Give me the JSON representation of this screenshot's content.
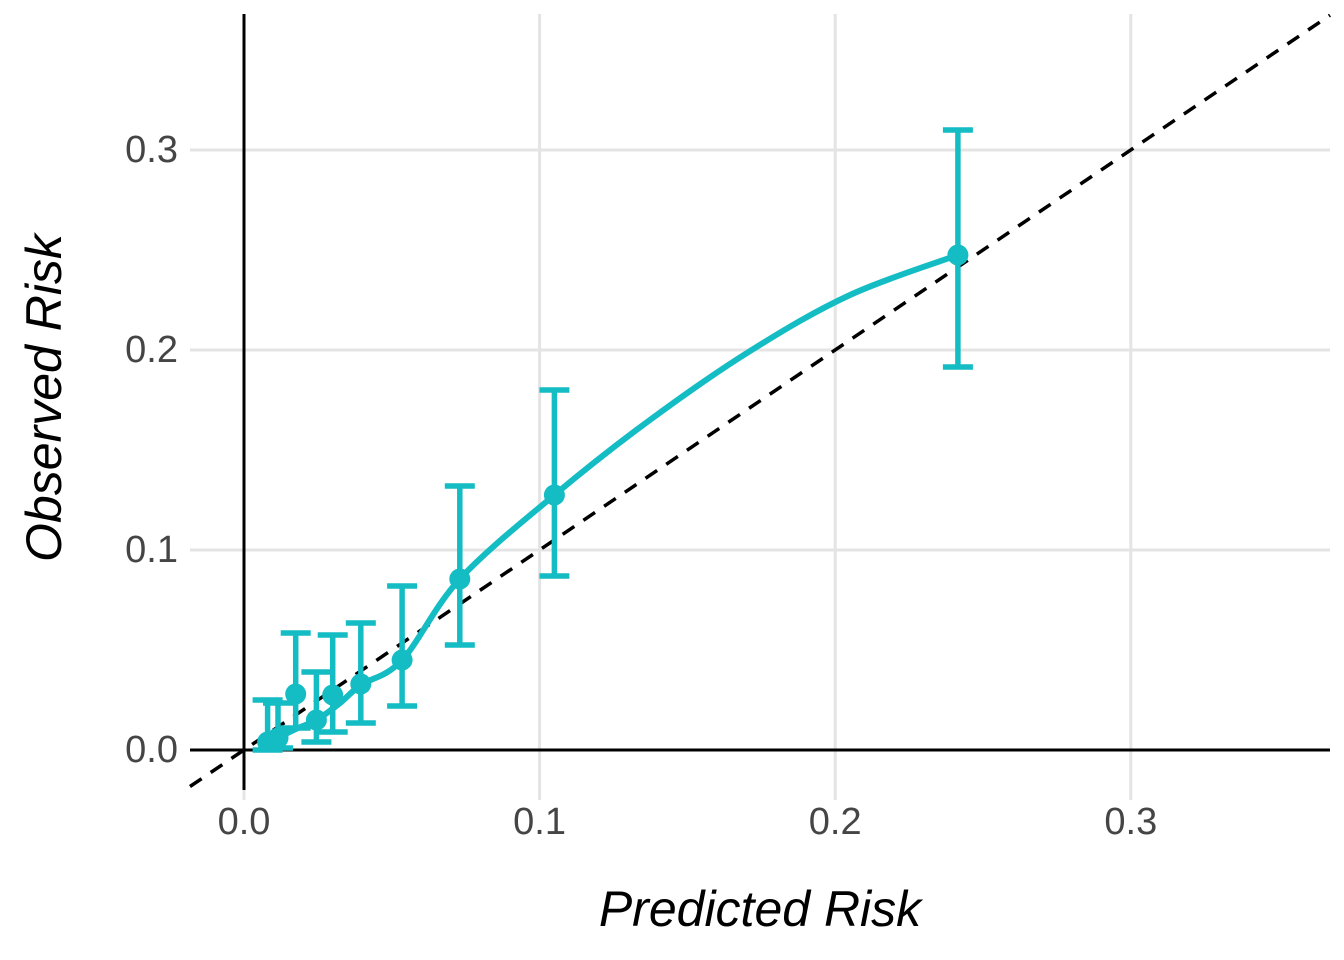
{
  "chart_data": {
    "type": "scatter",
    "title": "",
    "xlabel": "Predicted Risk",
    "ylabel": "Observed Risk",
    "x_ticks": [
      0.0,
      0.1,
      0.2,
      0.3
    ],
    "y_ticks": [
      0.0,
      0.1,
      0.2,
      0.3
    ],
    "x_tick_labels": [
      "0.0",
      "0.1",
      "0.2",
      "0.3"
    ],
    "y_tick_labels": [
      "0.0",
      "0.1",
      "0.2",
      "0.3"
    ],
    "xlim": [
      -0.019,
      0.368
    ],
    "ylim": [
      -0.02,
      0.368
    ],
    "grid": true,
    "legend_position": "none",
    "reference_line": {
      "type": "identity y=x",
      "style": "dashed",
      "color": "#000000"
    },
    "series": [
      {
        "name": "calibration points with 95% CI error bars",
        "type": "scatter",
        "color": "#14BCC4",
        "points": [
          {
            "x": 0.008,
            "y": 0.004,
            "lo": 0.0,
            "hi": 0.025
          },
          {
            "x": 0.0115,
            "y": 0.006,
            "lo": 0.001,
            "hi": 0.0235
          },
          {
            "x": 0.0175,
            "y": 0.028,
            "lo": 0.011,
            "hi": 0.0585
          },
          {
            "x": 0.0245,
            "y": 0.015,
            "lo": 0.004,
            "hi": 0.039
          },
          {
            "x": 0.03,
            "y": 0.0275,
            "lo": 0.009,
            "hi": 0.0575
          },
          {
            "x": 0.0395,
            "y": 0.033,
            "lo": 0.0135,
            "hi": 0.0635
          },
          {
            "x": 0.0535,
            "y": 0.045,
            "lo": 0.022,
            "hi": 0.082
          },
          {
            "x": 0.073,
            "y": 0.0855,
            "lo": 0.0525,
            "hi": 0.132
          },
          {
            "x": 0.105,
            "y": 0.1275,
            "lo": 0.087,
            "hi": 0.18
          },
          {
            "x": 0.2415,
            "y": 0.2475,
            "lo": 0.1915,
            "hi": 0.31
          }
        ]
      },
      {
        "name": "smooth calibration curve",
        "type": "line",
        "color": "#14BCC4",
        "x": [
          0.008,
          0.0175,
          0.0245,
          0.0325,
          0.0395,
          0.0535,
          0.073,
          0.105,
          0.1373,
          0.1712,
          0.205,
          0.2415
        ],
        "y": [
          0.0035,
          0.0105,
          0.015,
          0.0235,
          0.0325,
          0.045,
          0.0855,
          0.1275,
          0.165,
          0.1995,
          0.2275,
          0.2475
        ]
      }
    ],
    "colors": {
      "accent": "#14BCC4",
      "grid": "#E4E4E4",
      "axis_line": "#000000",
      "tick_label": "#454545",
      "axis_title": "#000000",
      "background": "#FFFFFF"
    }
  }
}
